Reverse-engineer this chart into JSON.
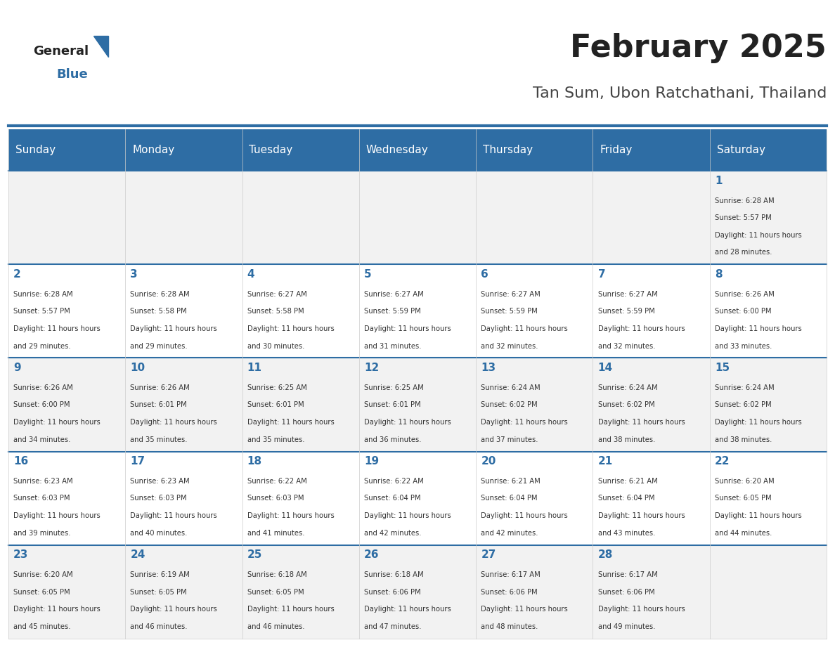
{
  "title": "February 2025",
  "subtitle": "Tan Sum, Ubon Ratchathani, Thailand",
  "header_bg": "#2E6DA4",
  "header_text_color": "#FFFFFF",
  "day_headers": [
    "Sunday",
    "Monday",
    "Tuesday",
    "Wednesday",
    "Thursday",
    "Friday",
    "Saturday"
  ],
  "cell_bg_even": "#F2F2F2",
  "cell_bg_odd": "#FFFFFF",
  "cell_text_color": "#333333",
  "day_num_color": "#2E6DA4",
  "grid_color": "#CCCCCC",
  "title_color": "#222222",
  "subtitle_color": "#444444",
  "logo_general_color": "#222222",
  "logo_blue_color": "#2E6DA4",
  "days": [
    {
      "date": 1,
      "row": 0,
      "col": 6,
      "sunrise": "6:28 AM",
      "sunset": "5:57 PM",
      "daylight": "11 hours and 28 minutes."
    },
    {
      "date": 2,
      "row": 1,
      "col": 0,
      "sunrise": "6:28 AM",
      "sunset": "5:57 PM",
      "daylight": "11 hours and 29 minutes."
    },
    {
      "date": 3,
      "row": 1,
      "col": 1,
      "sunrise": "6:28 AM",
      "sunset": "5:58 PM",
      "daylight": "11 hours and 29 minutes."
    },
    {
      "date": 4,
      "row": 1,
      "col": 2,
      "sunrise": "6:27 AM",
      "sunset": "5:58 PM",
      "daylight": "11 hours and 30 minutes."
    },
    {
      "date": 5,
      "row": 1,
      "col": 3,
      "sunrise": "6:27 AM",
      "sunset": "5:59 PM",
      "daylight": "11 hours and 31 minutes."
    },
    {
      "date": 6,
      "row": 1,
      "col": 4,
      "sunrise": "6:27 AM",
      "sunset": "5:59 PM",
      "daylight": "11 hours and 32 minutes."
    },
    {
      "date": 7,
      "row": 1,
      "col": 5,
      "sunrise": "6:27 AM",
      "sunset": "5:59 PM",
      "daylight": "11 hours and 32 minutes."
    },
    {
      "date": 8,
      "row": 1,
      "col": 6,
      "sunrise": "6:26 AM",
      "sunset": "6:00 PM",
      "daylight": "11 hours and 33 minutes."
    },
    {
      "date": 9,
      "row": 2,
      "col": 0,
      "sunrise": "6:26 AM",
      "sunset": "6:00 PM",
      "daylight": "11 hours and 34 minutes."
    },
    {
      "date": 10,
      "row": 2,
      "col": 1,
      "sunrise": "6:26 AM",
      "sunset": "6:01 PM",
      "daylight": "11 hours and 35 minutes."
    },
    {
      "date": 11,
      "row": 2,
      "col": 2,
      "sunrise": "6:25 AM",
      "sunset": "6:01 PM",
      "daylight": "11 hours and 35 minutes."
    },
    {
      "date": 12,
      "row": 2,
      "col": 3,
      "sunrise": "6:25 AM",
      "sunset": "6:01 PM",
      "daylight": "11 hours and 36 minutes."
    },
    {
      "date": 13,
      "row": 2,
      "col": 4,
      "sunrise": "6:24 AM",
      "sunset": "6:02 PM",
      "daylight": "11 hours and 37 minutes."
    },
    {
      "date": 14,
      "row": 2,
      "col": 5,
      "sunrise": "6:24 AM",
      "sunset": "6:02 PM",
      "daylight": "11 hours and 38 minutes."
    },
    {
      "date": 15,
      "row": 2,
      "col": 6,
      "sunrise": "6:24 AM",
      "sunset": "6:02 PM",
      "daylight": "11 hours and 38 minutes."
    },
    {
      "date": 16,
      "row": 3,
      "col": 0,
      "sunrise": "6:23 AM",
      "sunset": "6:03 PM",
      "daylight": "11 hours and 39 minutes."
    },
    {
      "date": 17,
      "row": 3,
      "col": 1,
      "sunrise": "6:23 AM",
      "sunset": "6:03 PM",
      "daylight": "11 hours and 40 minutes."
    },
    {
      "date": 18,
      "row": 3,
      "col": 2,
      "sunrise": "6:22 AM",
      "sunset": "6:03 PM",
      "daylight": "11 hours and 41 minutes."
    },
    {
      "date": 19,
      "row": 3,
      "col": 3,
      "sunrise": "6:22 AM",
      "sunset": "6:04 PM",
      "daylight": "11 hours and 42 minutes."
    },
    {
      "date": 20,
      "row": 3,
      "col": 4,
      "sunrise": "6:21 AM",
      "sunset": "6:04 PM",
      "daylight": "11 hours and 42 minutes."
    },
    {
      "date": 21,
      "row": 3,
      "col": 5,
      "sunrise": "6:21 AM",
      "sunset": "6:04 PM",
      "daylight": "11 hours and 43 minutes."
    },
    {
      "date": 22,
      "row": 3,
      "col": 6,
      "sunrise": "6:20 AM",
      "sunset": "6:05 PM",
      "daylight": "11 hours and 44 minutes."
    },
    {
      "date": 23,
      "row": 4,
      "col": 0,
      "sunrise": "6:20 AM",
      "sunset": "6:05 PM",
      "daylight": "11 hours and 45 minutes."
    },
    {
      "date": 24,
      "row": 4,
      "col": 1,
      "sunrise": "6:19 AM",
      "sunset": "6:05 PM",
      "daylight": "11 hours and 46 minutes."
    },
    {
      "date": 25,
      "row": 4,
      "col": 2,
      "sunrise": "6:18 AM",
      "sunset": "6:05 PM",
      "daylight": "11 hours and 46 minutes."
    },
    {
      "date": 26,
      "row": 4,
      "col": 3,
      "sunrise": "6:18 AM",
      "sunset": "6:06 PM",
      "daylight": "11 hours and 47 minutes."
    },
    {
      "date": 27,
      "row": 4,
      "col": 4,
      "sunrise": "6:17 AM",
      "sunset": "6:06 PM",
      "daylight": "11 hours and 48 minutes."
    },
    {
      "date": 28,
      "row": 4,
      "col": 5,
      "sunrise": "6:17 AM",
      "sunset": "6:06 PM",
      "daylight": "11 hours and 49 minutes."
    }
  ]
}
